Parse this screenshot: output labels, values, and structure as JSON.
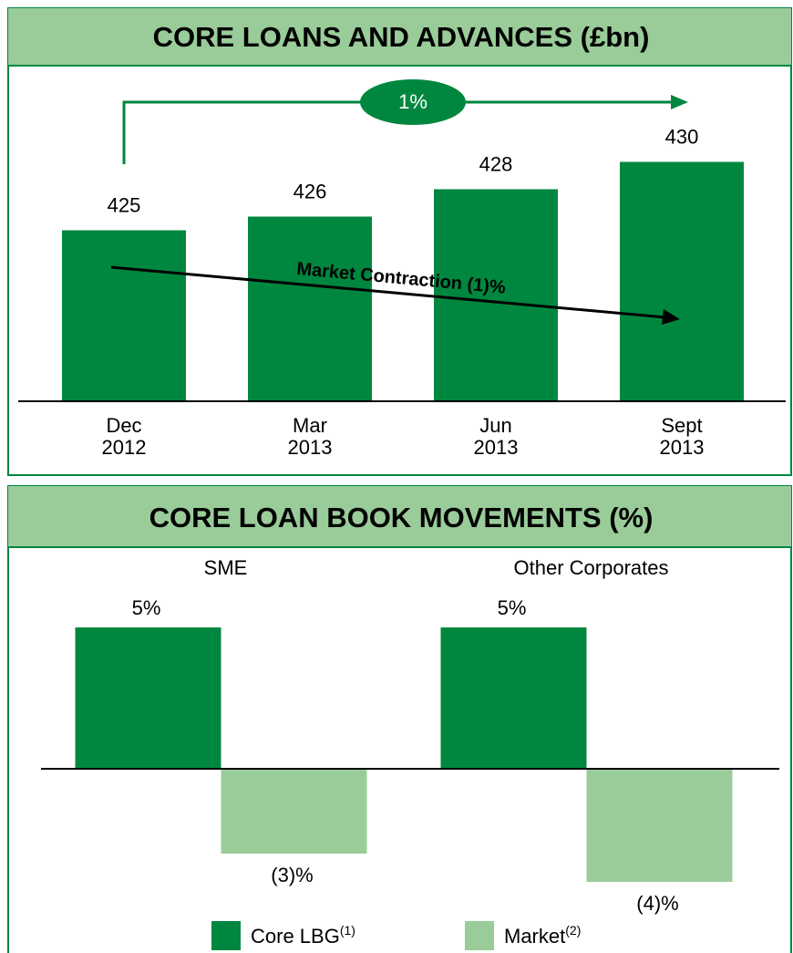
{
  "chart_data": [
    {
      "type": "bar",
      "title": "CORE LOANS AND ADVANCES (£bn)",
      "categories": [
        "Dec 2012",
        "Mar 2013",
        "Jun 2013",
        "Sept 2013"
      ],
      "values": [
        425,
        426,
        428,
        430
      ],
      "color": "#00873f",
      "ylim": [
        412.5,
        435
      ],
      "annotations": [
        "1%",
        "Market Contraction (1)%"
      ]
    },
    {
      "type": "bar",
      "title": "CORE LOAN BOOK MOVEMENTS (%)",
      "categories": [
        "SME",
        "Other Corporates"
      ],
      "series": [
        {
          "name": "Core LBG",
          "note": "(1)",
          "color": "#00873f",
          "values": [
            5,
            5
          ],
          "value_labels": [
            "5%",
            "5%"
          ]
        },
        {
          "name": "Market",
          "note": "(2)",
          "color": "#99cc99",
          "values": [
            -3,
            -4
          ],
          "value_labels": [
            "(3)%",
            "(4)%"
          ]
        }
      ],
      "ylim": [
        -5,
        7
      ]
    }
  ]
}
